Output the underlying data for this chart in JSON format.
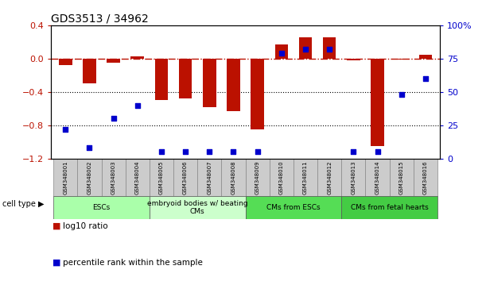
{
  "title": "GDS3513 / 34962",
  "samples": [
    "GSM348001",
    "GSM348002",
    "GSM348003",
    "GSM348004",
    "GSM348005",
    "GSM348006",
    "GSM348007",
    "GSM348008",
    "GSM348009",
    "GSM348010",
    "GSM348011",
    "GSM348012",
    "GSM348013",
    "GSM348014",
    "GSM348015",
    "GSM348016"
  ],
  "log10_ratio": [
    -0.08,
    -0.3,
    -0.05,
    0.03,
    -0.5,
    -0.48,
    -0.58,
    -0.63,
    -0.85,
    0.17,
    0.26,
    0.26,
    -0.02,
    -1.05,
    -0.01,
    0.05
  ],
  "percentile_rank": [
    22,
    8,
    30,
    40,
    5,
    5,
    5,
    5,
    5,
    79,
    82,
    82,
    5,
    5,
    48,
    60
  ],
  "cell_types": [
    {
      "label": "ESCs",
      "start": 0,
      "end": 4,
      "color": "#aaffaa"
    },
    {
      "label": "embryoid bodies w/ beating\nCMs",
      "start": 4,
      "end": 8,
      "color": "#ccffcc"
    },
    {
      "label": "CMs from ESCs",
      "start": 8,
      "end": 12,
      "color": "#55dd55"
    },
    {
      "label": "CMs from fetal hearts",
      "start": 12,
      "end": 16,
      "color": "#44cc44"
    }
  ],
  "bar_color": "#bb1100",
  "dot_color": "#0000cc",
  "ylim_left": [
    -1.2,
    0.4
  ],
  "ylim_right": [
    0,
    100
  ],
  "yticks_left": [
    -1.2,
    -0.8,
    -0.4,
    0.0,
    0.4
  ],
  "yticks_right": [
    0,
    25,
    50,
    75,
    100
  ],
  "ytick_labels_right": [
    "0",
    "25",
    "50",
    "75",
    "100%"
  ],
  "dotted_lines": [
    -0.4,
    -0.8
  ],
  "legend_items": [
    {
      "color": "#bb1100",
      "label": "log10 ratio"
    },
    {
      "color": "#0000cc",
      "label": "percentile rank within the sample"
    }
  ],
  "cell_type_label": "cell type ▶",
  "sample_box_color": "#cccccc",
  "sample_box_edge": "#888888"
}
